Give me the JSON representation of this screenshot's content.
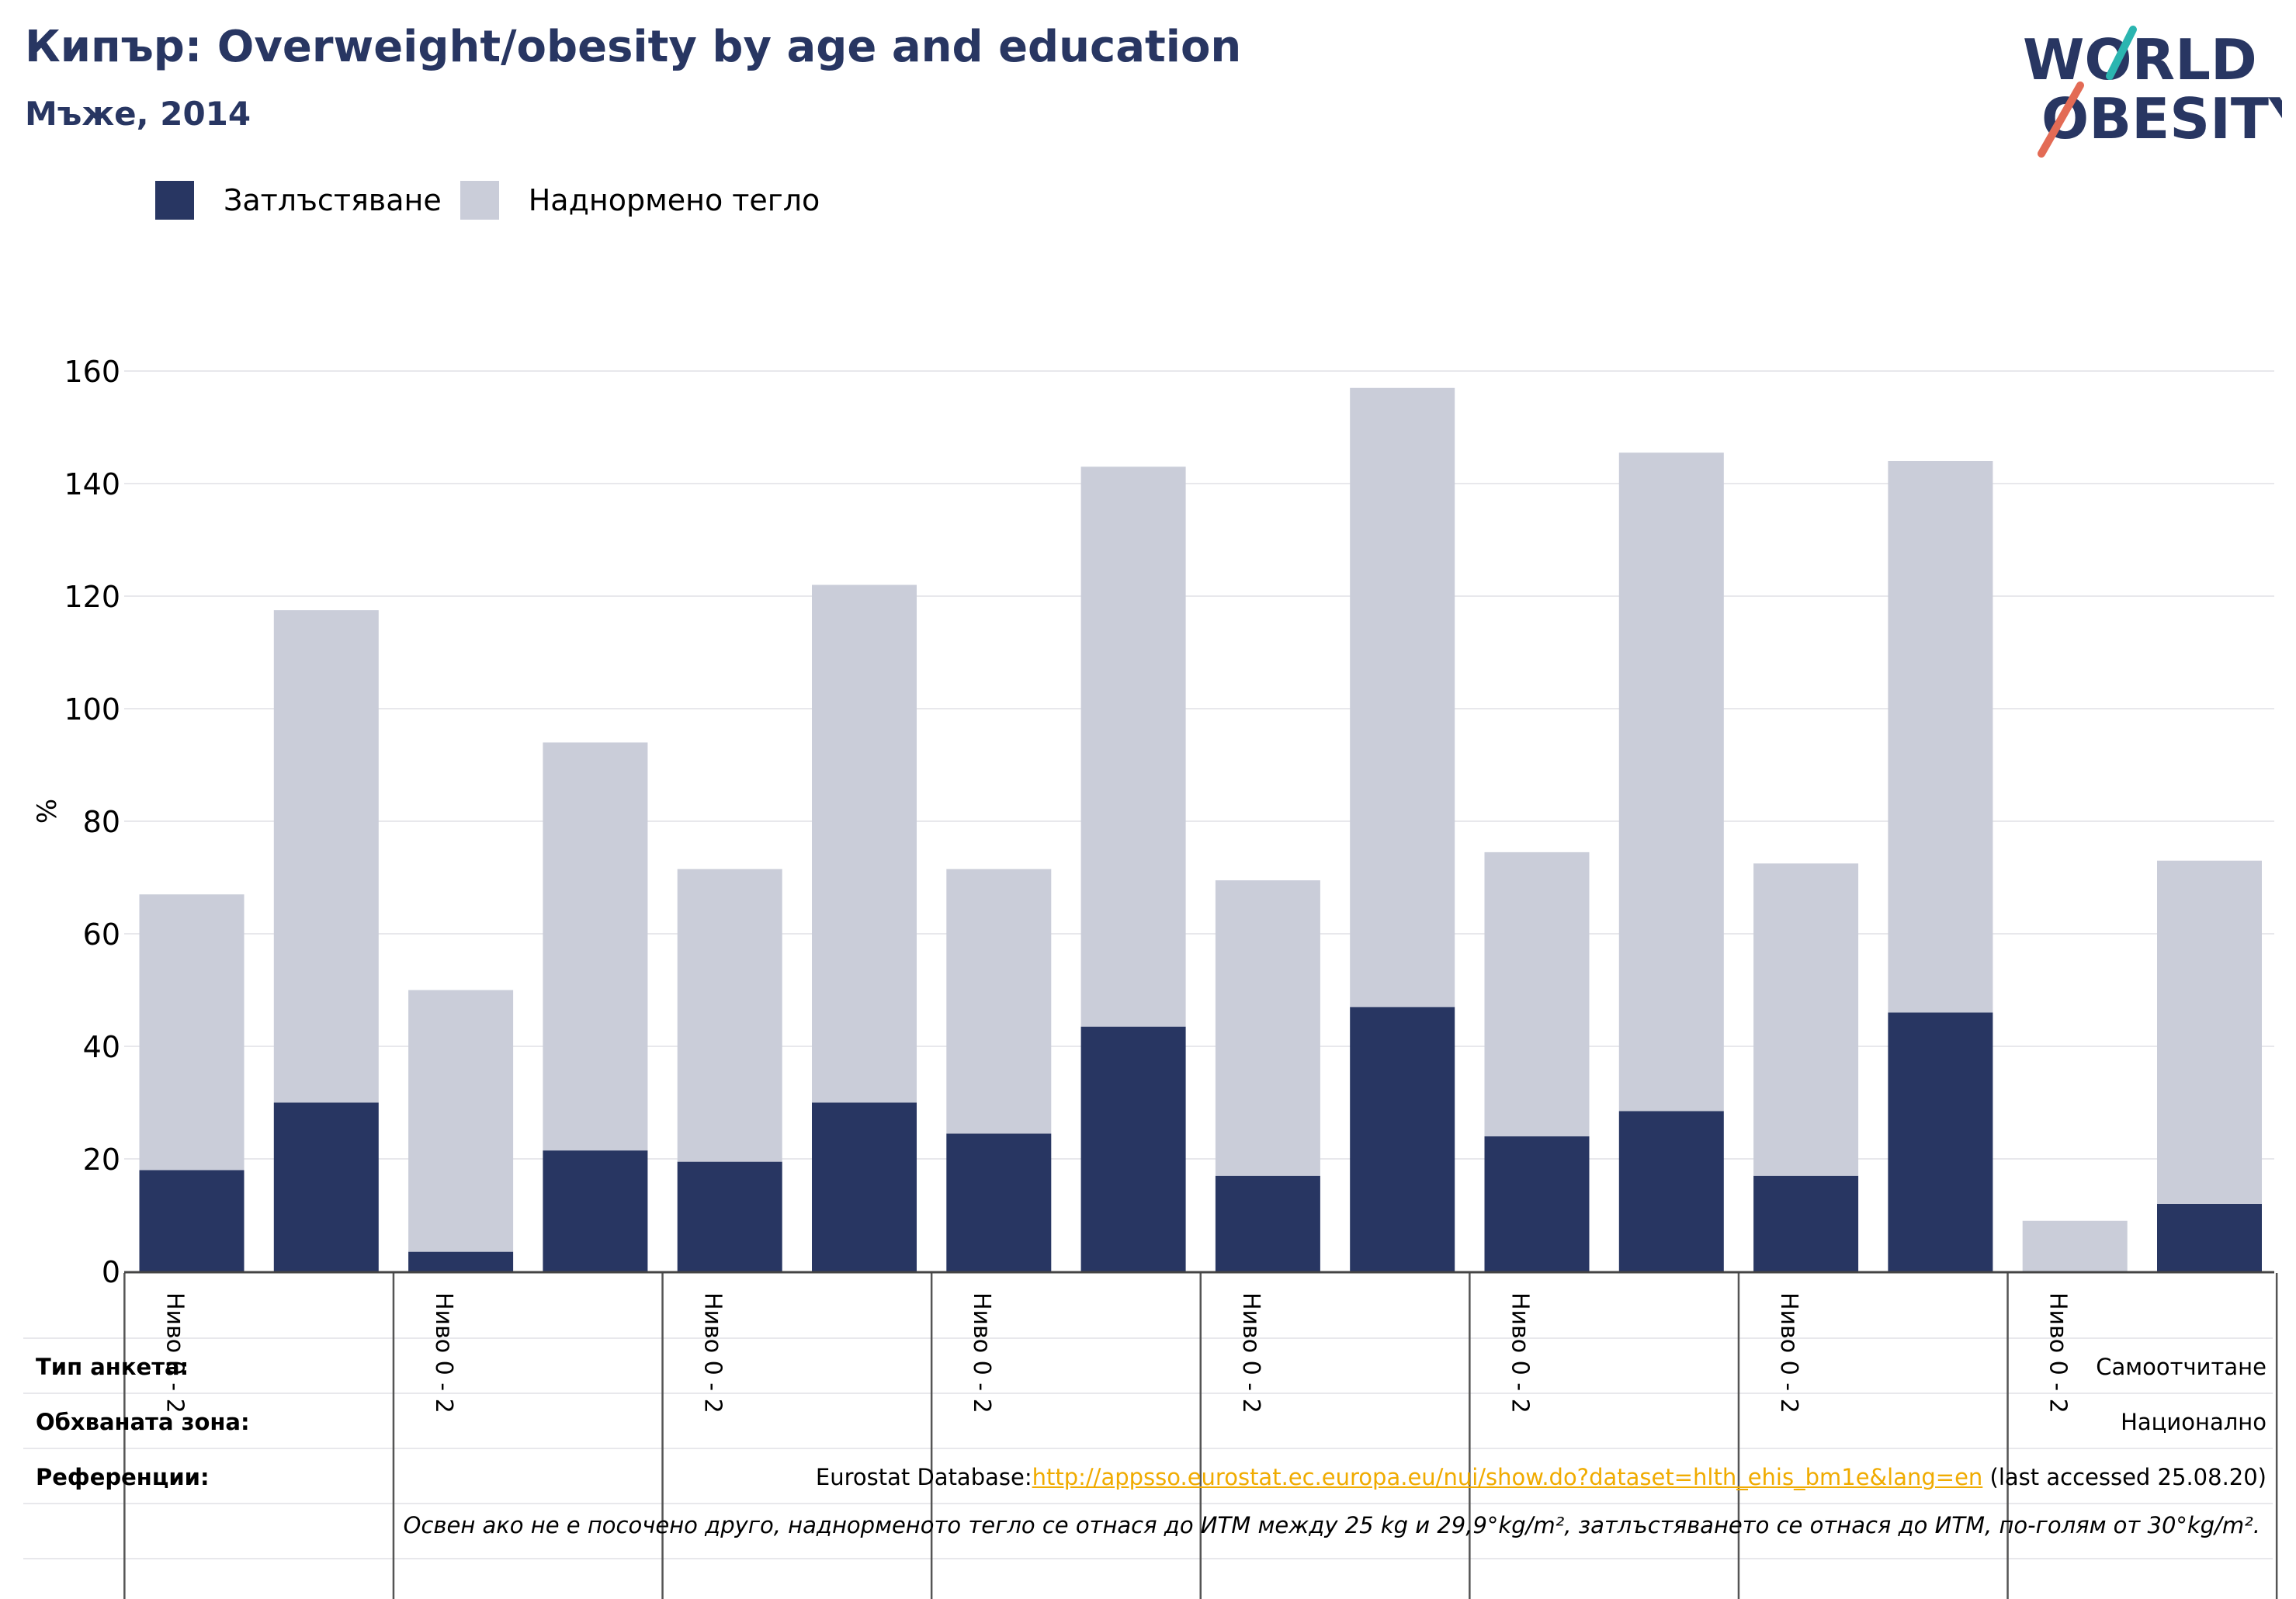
{
  "title": "Кипър: Overweight/obesity by age and education",
  "subtitle": "Мъже, 2014",
  "logo": {
    "line1": "WORLD",
    "line2": "OBESITY"
  },
  "legend": [
    {
      "label": "Затлъстяване",
      "color": "#283662"
    },
    {
      "label": "Наднормено тегло",
      "color": "#cacdd9"
    }
  ],
  "info": {
    "survey_type_label": "Тип анкета:",
    "survey_type_value": "Самоотчитане",
    "coverage_label": "Обхваната зона:",
    "coverage_value": "Национално",
    "references_label": "Референции:",
    "ref_prefix": "Eurostat Database:",
    "ref_link": "http://appsso.eurostat.ec.europa.eu/nui/show.do?dataset=hlth_ehis_bm1e&lang=en",
    "ref_suffix": " (last accessed 25.08.20)",
    "note": "Освен ако не е посочено друго, наднорменото тегло се отнася до ИТМ между 25 kg и 29,9°kg/m², затлъстяването се отнася до ИТМ, по-голям от 30°kg/m²."
  },
  "chart_data": {
    "type": "bar",
    "stacked": true,
    "ylabel": "%",
    "ylim": [
      0,
      160
    ],
    "yticks": [
      0,
      20,
      40,
      60,
      80,
      100,
      120,
      140,
      160
    ],
    "group_labels": [
      "Ниво 0 - 2",
      "Ниво 0 - 2",
      "Ниво 0 - 2",
      "Ниво 0 - 2",
      "Ниво 0 - 2",
      "Ниво 0 - 2",
      "Ниво 0 - 2",
      "Ниво 0 - 2"
    ],
    "series": [
      {
        "name": "Затлъстяване",
        "color": "#283662",
        "values": [
          18,
          30,
          3.5,
          21.5,
          19.5,
          30,
          24.5,
          43.5,
          17,
          47,
          24,
          28.5,
          17,
          46,
          0,
          12
        ]
      },
      {
        "name": "Наднормено тегло",
        "color": "#cacdd9",
        "values": [
          49,
          87.5,
          46.5,
          72.5,
          52,
          92,
          47,
          99.5,
          52.5,
          110,
          50.5,
          117,
          55.5,
          98,
          9,
          61
        ]
      }
    ]
  }
}
